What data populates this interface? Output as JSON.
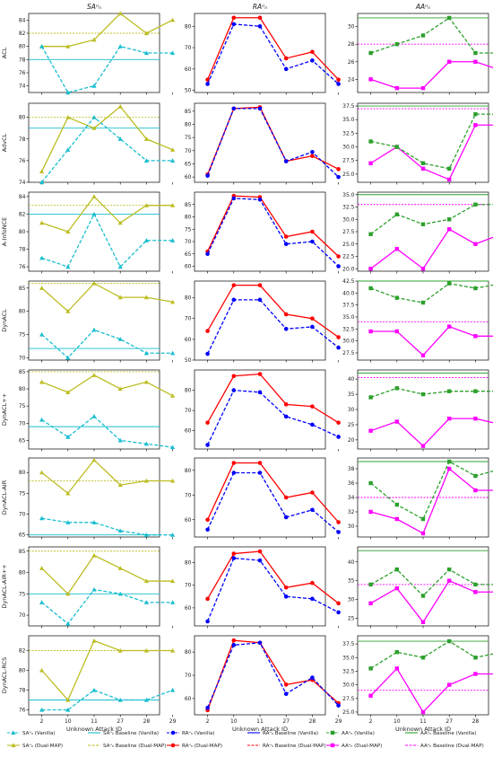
{
  "chart_data": {
    "type": "line",
    "x": [
      2,
      10,
      11,
      27,
      28,
      29
    ],
    "xlabel": "Unknown Attack ID",
    "columns": [
      "SA",
      "RA",
      "AA"
    ],
    "column_titles": [
      "SAᵘₙ",
      "RAᵘₙ",
      "AAᵘₙ"
    ],
    "rows": [
      "ACL",
      "AdvCL",
      "A-InfoNCE",
      "DynACL",
      "DynACL++",
      "DynACL-AIR",
      "DynACL-AIR++",
      "DynACL-RCS"
    ],
    "colors": {
      "vanilla_sa": "#17becf",
      "dual_sa": "#bcbd22",
      "vanilla_ra": "#0000ff",
      "dual_ra": "#ff0000",
      "vanilla_aa": "#2ca02c",
      "dual_aa": "#ff00ff"
    },
    "legend": [
      {
        "key": "vanilla_sa",
        "label": "SAᵘₙ (Vanilla)",
        "kind": "series",
        "dashed": true,
        "marker": "triangle"
      },
      {
        "key": "vanilla_sa",
        "label": "SAᵘₙ Baseline (Vanilla)",
        "kind": "baseline",
        "dashed": false
      },
      {
        "key": "vanilla_ra",
        "label": "RAᵘₙ (Vanilla)",
        "kind": "series",
        "dashed": true,
        "marker": "circle"
      },
      {
        "key": "vanilla_ra",
        "label": "RAᵘₙ Baseline (Vanilla)",
        "kind": "baseline",
        "dashed": false
      },
      {
        "key": "vanilla_aa",
        "label": "AAᵘₙ (Vanilla)",
        "kind": "series",
        "dashed": true,
        "marker": "square"
      },
      {
        "key": "vanilla_aa",
        "label": "AAᵘₙ Baseline (Vanilla)",
        "kind": "baseline",
        "dashed": false
      },
      {
        "key": "dual_sa",
        "label": "SAᵘₙ (Dual-MAP)",
        "kind": "series",
        "dashed": false,
        "marker": "triangle"
      },
      {
        "key": "dual_sa",
        "label": "SAᵘₙ Baseline (Dual-MAP)",
        "kind": "baseline",
        "dashed": true
      },
      {
        "key": "dual_ra",
        "label": "RAᵘₙ (Dual-MAP)",
        "kind": "series",
        "dashed": false,
        "marker": "circle"
      },
      {
        "key": "dual_ra",
        "label": "RAᵘₙ Baseline (Dual-MAP)",
        "kind": "baseline",
        "dashed": true
      },
      {
        "key": "dual_aa",
        "label": "AAᵘₙ (Dual-MAP)",
        "kind": "series",
        "dashed": false,
        "marker": "square"
      },
      {
        "key": "dual_aa",
        "label": "AAᵘₙ Baseline (Dual-MAP)",
        "kind": "baseline",
        "dashed": true
      }
    ],
    "panels": [
      {
        "row": "ACL",
        "col": "SA",
        "ylim": [
          73,
          85
        ],
        "yticks": [
          74,
          76,
          78,
          80,
          82,
          84
        ],
        "vanilla": [
          80,
          73,
          74,
          80,
          79,
          79
        ],
        "dual": [
          80,
          80,
          81,
          85,
          82,
          84
        ],
        "baseline_vanilla": 78,
        "baseline_dual": 82
      },
      {
        "row": "ACL",
        "col": "RA",
        "ylim": [
          49,
          86
        ],
        "yticks": [
          50,
          60,
          70,
          80
        ],
        "vanilla": [
          53,
          81,
          80,
          60,
          64,
          53
        ],
        "dual": [
          55,
          84,
          84,
          65,
          68,
          55
        ]
      },
      {
        "row": "ACL",
        "col": "AA",
        "ylim": [
          22.5,
          31.5
        ],
        "yticks": [
          24,
          26,
          28,
          30
        ],
        "vanilla": [
          27,
          28,
          29,
          31,
          27,
          27
        ],
        "dual": [
          24,
          23,
          23,
          26,
          26,
          25
        ],
        "baseline_vanilla": 31,
        "baseline_dual": 28
      },
      {
        "row": "AdvCL",
        "col": "SA",
        "ylim": [
          74,
          81.3
        ],
        "yticks": [
          74,
          76,
          78,
          80
        ],
        "vanilla": [
          74,
          77,
          80,
          78,
          76,
          76
        ],
        "dual": [
          75,
          80,
          79,
          81,
          78,
          77
        ],
        "baseline_vanilla": 79,
        "baseline_dual": 80
      },
      {
        "row": "AdvCL",
        "col": "RA",
        "ylim": [
          58,
          88
        ],
        "yticks": [
          60,
          65,
          70,
          75,
          80,
          85
        ],
        "vanilla": [
          60.5,
          86,
          86,
          66,
          69.5,
          60
        ],
        "dual": [
          61,
          86,
          86.5,
          66,
          68,
          63
        ]
      },
      {
        "row": "AdvCL",
        "col": "AA",
        "ylim": [
          23.5,
          38
        ],
        "yticks": [
          25.0,
          27.5,
          30.0,
          32.5,
          35.0,
          37.5
        ],
        "vanilla": [
          31,
          30,
          27,
          26,
          36,
          36
        ],
        "dual": [
          27,
          30,
          26,
          24,
          34,
          34
        ],
        "baseline_vanilla": 37.5,
        "baseline_dual": 37,
        "tick_format": "1"
      },
      {
        "row": "A-InfoNCE",
        "col": "SA",
        "ylim": [
          75.5,
          84.5
        ],
        "yticks": [
          76,
          78,
          80,
          82,
          84
        ],
        "vanilla": [
          77,
          76,
          82,
          76,
          79,
          79
        ],
        "dual": [
          81,
          80,
          84,
          81,
          83,
          83
        ],
        "baseline_vanilla": 82,
        "baseline_dual": 83
      },
      {
        "row": "A-InfoNCE",
        "col": "RA",
        "ylim": [
          58,
          90
        ],
        "yticks": [
          60,
          65,
          70,
          75,
          80,
          85
        ],
        "vanilla": [
          65,
          87.5,
          87,
          69,
          70,
          60
        ],
        "dual": [
          66,
          88.5,
          88,
          72,
          74,
          64
        ]
      },
      {
        "row": "A-InfoNCE",
        "col": "AA",
        "ylim": [
          19.5,
          35.5
        ],
        "yticks": [
          20.0,
          22.5,
          25.0,
          27.5,
          30.0,
          32.5,
          35.0
        ],
        "vanilla": [
          27,
          31,
          29,
          30,
          33,
          33
        ],
        "dual": [
          20,
          24,
          20,
          28,
          25,
          27
        ],
        "baseline_vanilla": 35,
        "baseline_dual": 33,
        "tick_format": "1"
      },
      {
        "row": "DynACL",
        "col": "SA",
        "ylim": [
          69.5,
          86.5
        ],
        "yticks": [
          70,
          75,
          80,
          85
        ],
        "vanilla": [
          75,
          70,
          76,
          74,
          71,
          71
        ],
        "dual": [
          85,
          80,
          86,
          83,
          83,
          82
        ],
        "baseline_vanilla": 72,
        "baseline_dual": 86
      },
      {
        "row": "DynACL",
        "col": "RA",
        "ylim": [
          50,
          88
        ],
        "yticks": [
          50,
          60,
          70,
          80
        ],
        "vanilla": [
          53,
          79,
          79,
          65,
          66,
          56
        ],
        "dual": [
          64,
          86,
          86,
          72,
          70,
          61
        ]
      },
      {
        "row": "DynACL",
        "col": "AA",
        "ylim": [
          26,
          42.5
        ],
        "yticks": [
          27.5,
          30.0,
          32.5,
          35.0,
          37.5,
          40.0,
          42.5
        ],
        "vanilla": [
          41,
          39,
          38,
          42,
          41,
          42
        ],
        "dual": [
          32,
          32,
          27,
          33,
          31,
          31
        ],
        "baseline_vanilla": 42.5,
        "baseline_dual": 34,
        "tick_format": "1"
      },
      {
        "row": "DynACL++",
        "col": "SA",
        "ylim": [
          62.5,
          85.5
        ],
        "yticks": [
          65,
          70,
          75,
          80,
          85
        ],
        "vanilla": [
          71,
          66,
          72,
          65,
          64,
          63
        ],
        "dual": [
          82,
          79,
          84,
          80,
          82,
          78
        ],
        "baseline_vanilla": 69,
        "baseline_dual": 85
      },
      {
        "row": "DynACL++",
        "col": "RA",
        "ylim": [
          51,
          90
        ],
        "yticks": [
          60,
          70,
          80
        ],
        "vanilla": [
          53,
          80,
          79,
          67,
          63,
          57
        ],
        "dual": [
          64,
          87,
          88,
          73,
          72,
          64
        ]
      },
      {
        "row": "DynACL++",
        "col": "AA",
        "ylim": [
          17,
          43
        ],
        "yticks": [
          20,
          25,
          30,
          35,
          40
        ],
        "vanilla": [
          34,
          37,
          35,
          36,
          36,
          36
        ],
        "dual": [
          23,
          26,
          18,
          27,
          27,
          25
        ],
        "baseline_vanilla": 42,
        "baseline_dual": 40.5
      },
      {
        "row": "DynACL-AIR",
        "col": "SA",
        "ylim": [
          64.5,
          83.5
        ],
        "yticks": [
          65,
          70,
          75,
          80
        ],
        "vanilla": [
          69,
          68,
          68,
          66,
          65,
          65
        ],
        "dual": [
          80,
          75,
          83,
          77,
          78,
          78
        ],
        "baseline_vanilla": 65,
        "baseline_dual": 78
      },
      {
        "row": "DynACL-AIR",
        "col": "RA",
        "ylim": [
          53,
          85
        ],
        "yticks": [
          60,
          70,
          80
        ],
        "vanilla": [
          56,
          79,
          79,
          61,
          64,
          55
        ],
        "dual": [
          60,
          83,
          83,
          69,
          71,
          59
        ]
      },
      {
        "row": "DynACL-AIR",
        "col": "AA",
        "ylim": [
          28.5,
          39.5
        ],
        "yticks": [
          30,
          32,
          34,
          36,
          38
        ],
        "vanilla": [
          36,
          33,
          31,
          39,
          37,
          38
        ],
        "dual": [
          32,
          31,
          29,
          38,
          35,
          35
        ],
        "baseline_vanilla": 39,
        "baseline_dual": 34
      },
      {
        "row": "DynACL-AIR++",
        "col": "SA",
        "ylim": [
          67.5,
          86
        ],
        "yticks": [
          70,
          75,
          80,
          85
        ],
        "vanilla": [
          73,
          68,
          76,
          75,
          73,
          73
        ],
        "dual": [
          81,
          75,
          84,
          81,
          78,
          78
        ],
        "baseline_vanilla": 75,
        "baseline_dual": 85
      },
      {
        "row": "DynACL-AIR++",
        "col": "RA",
        "ylim": [
          52,
          87
        ],
        "yticks": [
          60,
          70,
          80
        ],
        "vanilla": [
          54,
          82,
          81,
          65,
          64,
          58
        ],
        "dual": [
          64,
          84,
          85,
          69,
          71,
          62
        ]
      },
      {
        "row": "DynACL-AIR++",
        "col": "AA",
        "ylim": [
          23,
          44
        ],
        "yticks": [
          25,
          30,
          35,
          40
        ],
        "vanilla": [
          34,
          38,
          31,
          38,
          34,
          34
        ],
        "dual": [
          29,
          33,
          24,
          35,
          32,
          32
        ],
        "baseline_vanilla": 43,
        "baseline_dual": 34
      },
      {
        "row": "DynACL-RCS",
        "col": "SA",
        "ylim": [
          75.5,
          83.5
        ],
        "yticks": [
          76,
          78,
          80,
          82
        ],
        "vanilla": [
          76,
          76,
          78,
          77,
          77,
          78
        ],
        "dual": [
          80,
          77,
          83,
          82,
          82,
          82
        ],
        "baseline_vanilla": 77,
        "baseline_dual": 82
      },
      {
        "row": "DynACL-RCS",
        "col": "RA",
        "ylim": [
          53,
          87
        ],
        "yticks": [
          60,
          70,
          80
        ],
        "vanilla": [
          56,
          83,
          84,
          62,
          69,
          57
        ],
        "dual": [
          55,
          85,
          84,
          66,
          68,
          58
        ]
      },
      {
        "row": "DynACL-RCS",
        "col": "AA",
        "ylim": [
          24.5,
          39
        ],
        "yticks": [
          25.0,
          27.5,
          30.0,
          32.5,
          35.0,
          37.5
        ],
        "vanilla": [
          33,
          36,
          35,
          38,
          35,
          36
        ],
        "dual": [
          28,
          33,
          25,
          30,
          32,
          32
        ],
        "baseline_vanilla": 38,
        "baseline_dual": 29,
        "tick_format": "1"
      }
    ]
  }
}
